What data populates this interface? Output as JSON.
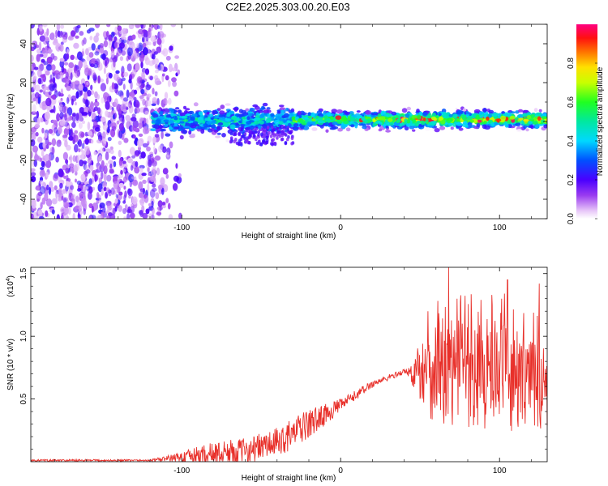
{
  "title": "C2E2.2025.303.00.20.E03",
  "chart_data": [
    {
      "type": "heatmap",
      "title": "C2E2.2025.303.00.20.E03",
      "xlabel": "Height of straight line (km)",
      "ylabel": "Frequency (Hz)",
      "xlim": [
        -195,
        130
      ],
      "ylim": [
        -50,
        50
      ],
      "x_ticks": [
        -100,
        0,
        100
      ],
      "x_tick_labels": [
        "-100",
        "0",
        "100"
      ],
      "y_ticks": [
        -40,
        -20,
        0,
        20,
        40
      ],
      "y_tick_labels": [
        "-40",
        "-20",
        "0",
        "20",
        "40"
      ],
      "colorbar": {
        "label": "Normalized spectral amplitude",
        "range": [
          0,
          1
        ],
        "ticks": [
          0.0,
          0.2,
          0.4,
          0.6,
          0.8
        ],
        "tick_labels": [
          "0.0",
          "0.2",
          "0.4",
          "0.6",
          "0.8"
        ]
      },
      "description_points": {
        "noise_region_x": [
          -195,
          -105
        ],
        "signal_band_center_hz": 1,
        "signal_band_halfwidth_hz": 4,
        "signal_start_x": -118
      }
    },
    {
      "type": "line",
      "xlabel": "Height of straight line (km)",
      "ylabel": "SNR (10 * v/v)",
      "y_scale_label": "(x10",
      "y_scale_exponent": "4",
      "xlim": [
        -195,
        130
      ],
      "ylim": [
        0,
        1.55
      ],
      "x_ticks": [
        -100,
        0,
        100
      ],
      "x_tick_labels": [
        "-100",
        "0",
        "100"
      ],
      "y_ticks": [
        0.5,
        1.0,
        1.5
      ],
      "y_tick_labels": [
        "0.5",
        "1.0",
        "1.5"
      ],
      "color": "#e8302a",
      "envelope": {
        "x": [
          -195,
          -120,
          -105,
          -80,
          -60,
          -40,
          -20,
          0,
          20,
          40,
          45,
          60,
          80,
          100,
          130
        ],
        "baseline": [
          0.01,
          0.01,
          0.03,
          0.06,
          0.09,
          0.15,
          0.3,
          0.45,
          0.62,
          0.72,
          0.7,
          0.72,
          0.72,
          0.68,
          0.62
        ],
        "noise": [
          0.008,
          0.008,
          0.03,
          0.1,
          0.1,
          0.12,
          0.12,
          0.05,
          0.03,
          0.02,
          0.1,
          0.45,
          0.45,
          0.45,
          0.4
        ]
      },
      "peaks": [
        {
          "x": 68,
          "y": 1.55
        },
        {
          "x": 105,
          "y": 1.45
        },
        {
          "x": 125,
          "y": 1.42
        },
        {
          "x": 55,
          "y": 1.2
        }
      ]
    }
  ]
}
